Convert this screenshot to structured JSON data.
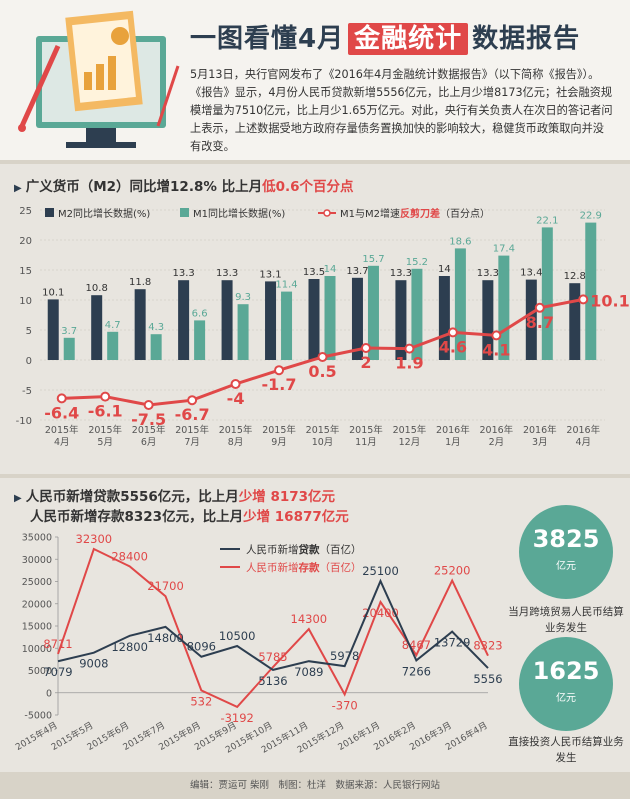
{
  "header": {
    "title_pre": "一图看懂4月",
    "title_hl": "金融统计",
    "title_post": "数据报告",
    "intro": "5月13日，央行官网发布了《2016年4月金融统计数据报告》（以下简称《报告》）。《报告》显示，4月份人民币贷款新增5556亿元，比上月少增8173亿元；社会融资规模增量为7510亿元，比上月少1.65万亿元。对此，央行有关负责人在次日的答记者问上表示，上述数据受地方政府存量债务置换加快的影响较大，稳健货币政策取向并没有改变。"
  },
  "section1": {
    "title_pre": "广义货币（M2）同比增12.8%  比上月",
    "title_red": "低0.6个百分点"
  },
  "section2": {
    "line1_pre": "人民币新增贷款5556亿元，比上月",
    "line1_red": "少增 8173亿元",
    "line2_pre": "人民币新增存款8323亿元，比上月",
    "line2_red": "少增 16877亿元"
  },
  "circles": {
    "c1_num": "3825",
    "c1_unit": "亿元",
    "c1_cap": "当月跨境贸易人民币结算业务发生",
    "c2_num": "1625",
    "c2_unit": "亿元",
    "c2_cap": "直接投资人民币结算业务发生"
  },
  "footer": "编辑：贾运可 柴刚　制图：杜洋　数据来源：人民银行网站",
  "colors": {
    "m2": "#2d3e50",
    "m1": "#5aa896",
    "red": "#e04848"
  },
  "chart_data": [
    {
      "type": "bar",
      "categories": [
        "2015年\n4月",
        "2015年\n5月",
        "2015年\n6月",
        "2015年\n7月",
        "2015年\n8月",
        "2015年\n9月",
        "2015年\n10月",
        "2015年\n11月",
        "2015年\n12月",
        "2016年\n1月",
        "2016年\n2月",
        "2016年\n3月",
        "2016年\n4月"
      ],
      "series": [
        {
          "name": "M2同比增长数据(%)",
          "type": "bar",
          "values": [
            10.1,
            10.8,
            11.8,
            13.3,
            13.3,
            13.1,
            13.5,
            13.7,
            13.3,
            14,
            13.3,
            13.4,
            12.8
          ]
        },
        {
          "name": "M1同比增长数据(%)",
          "type": "bar",
          "values": [
            3.7,
            4.7,
            4.3,
            6.6,
            9.3,
            11.4,
            14,
            15.7,
            15.2,
            18.6,
            17.4,
            22.1,
            22.9
          ]
        },
        {
          "name_pre": "M1与M2增速",
          "name_red": "反剪刀差",
          "name_post": "（百分点）",
          "type": "line",
          "values": [
            -6.4,
            -6.1,
            -7.5,
            -6.7,
            -4,
            -1.7,
            0.5,
            2,
            1.9,
            4.6,
            4.1,
            8.7,
            10.1
          ]
        }
      ],
      "yticks": [
        -10,
        -5,
        0,
        5,
        10,
        15,
        20,
        25
      ],
      "ylim": [
        -10,
        25
      ],
      "grid": true
    },
    {
      "type": "line",
      "categories": [
        "2015年4月",
        "2015年5月",
        "2015年6月",
        "2015年7月",
        "2015年8月",
        "2015年9月",
        "2015年10月",
        "2015年11月",
        "2015年12月",
        "2016年1月",
        "2016年2月",
        "2016年3月",
        "2016年4月"
      ],
      "series": [
        {
          "name_pre": "人民币新增",
          "name_bold": "贷款",
          "name_post": "（百亿）",
          "values": [
            7079,
            9008,
            12800,
            14800,
            8096,
            10500,
            5136,
            7089,
            5978,
            25100,
            7266,
            13729,
            5556
          ]
        },
        {
          "name_pre": "人民币新增",
          "name_bold": "存款",
          "name_post": "（百亿）",
          "values": [
            8711,
            32300,
            28400,
            21700,
            532,
            -3192,
            5785,
            14300,
            -370,
            20400,
            8467,
            25200,
            8323
          ]
        }
      ],
      "yticks": [
        -5000,
        0,
        5000,
        10000,
        15000,
        20000,
        25000,
        30000,
        35000
      ],
      "ylim": [
        -5000,
        35000
      ],
      "grid": false
    }
  ]
}
